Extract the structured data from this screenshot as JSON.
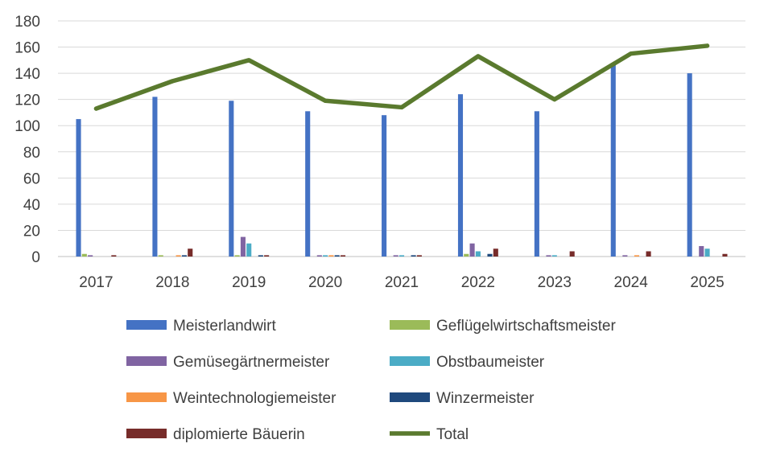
{
  "chart_data": {
    "type": "bar",
    "categories": [
      "2017",
      "2018",
      "2019",
      "2020",
      "2021",
      "2022",
      "2023",
      "2024",
      "2025"
    ],
    "ylim": [
      0,
      180
    ],
    "yticks": [
      0,
      20,
      40,
      60,
      80,
      100,
      120,
      140,
      160,
      180
    ],
    "grid": true,
    "legend_position": "bottom",
    "series": [
      {
        "name": "Meisterlandwirt",
        "type": "bar",
        "color": "#4472C4",
        "values": [
          105,
          122,
          119,
          111,
          108,
          124,
          111,
          147,
          140
        ]
      },
      {
        "name": "Geflügelwirtschaftsmeister",
        "type": "bar",
        "color": "#9BBB59",
        "values": [
          2,
          1,
          1,
          0,
          0,
          2,
          0,
          0,
          0
        ]
      },
      {
        "name": "Gemüsegärtnermeister",
        "type": "bar",
        "color": "#8064A2",
        "values": [
          1,
          0,
          15,
          1,
          1,
          10,
          1,
          1,
          8
        ]
      },
      {
        "name": "Obstbaumeister",
        "type": "bar",
        "color": "#4BACC6",
        "values": [
          0,
          0,
          10,
          1,
          1,
          4,
          1,
          0,
          6
        ]
      },
      {
        "name": "Weintechnologiemeister",
        "type": "bar",
        "color": "#F79646",
        "values": [
          0,
          1,
          0,
          1,
          0,
          0,
          0,
          1,
          0
        ]
      },
      {
        "name": "Winzermeister",
        "type": "bar",
        "color": "#1F497D",
        "values": [
          0,
          1,
          1,
          1,
          1,
          2,
          0,
          0,
          0
        ]
      },
      {
        "name": "diplomierte Bäuerin",
        "type": "bar",
        "color": "#772C2A",
        "values": [
          1,
          6,
          1,
          1,
          1,
          6,
          4,
          4,
          2
        ]
      },
      {
        "name": "Total",
        "type": "line",
        "color": "#5A7A2E",
        "values": [
          113,
          134,
          150,
          119,
          114,
          153,
          120,
          155,
          161
        ]
      }
    ]
  }
}
